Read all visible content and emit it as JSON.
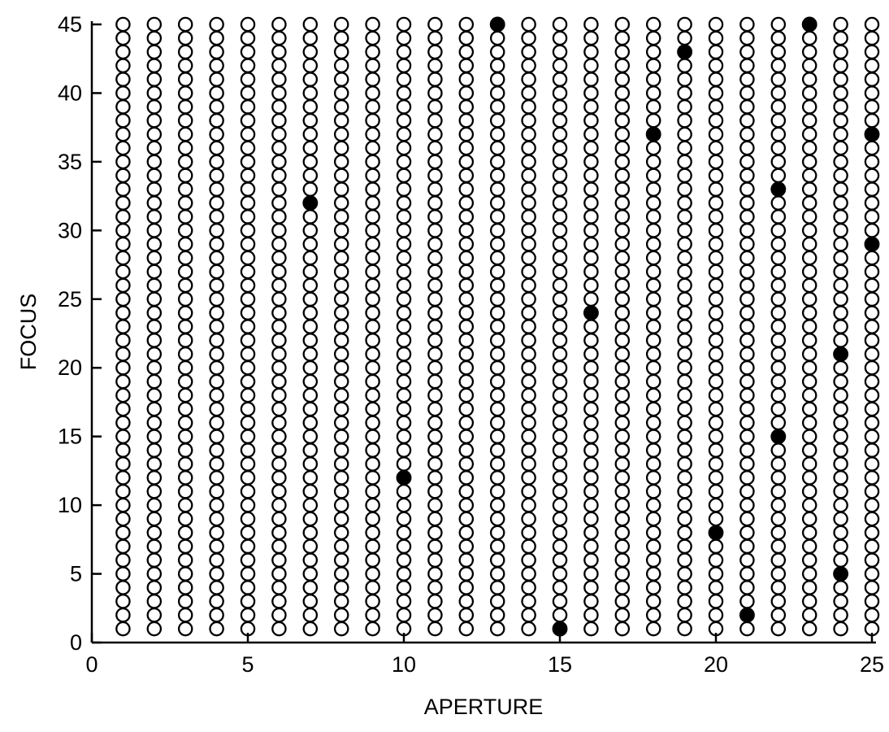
{
  "chart_data": {
    "type": "scatter",
    "title": "",
    "xlabel": "APERTURE",
    "ylabel": "FOCUS",
    "xlim": [
      0,
      25
    ],
    "ylim": [
      0,
      45
    ],
    "x_ticks": [
      {
        "value": 0,
        "label": "0"
      },
      {
        "value": 5,
        "label": "5"
      },
      {
        "value": 10,
        "label": "10"
      },
      {
        "value": 15,
        "label": "15"
      },
      {
        "value": 20,
        "label": "20"
      },
      {
        "value": 25,
        "label": "25"
      }
    ],
    "y_ticks": [
      {
        "value": 0,
        "label": "0"
      },
      {
        "value": 5,
        "label": "5"
      },
      {
        "value": 10,
        "label": "10"
      },
      {
        "value": 15,
        "label": "15"
      },
      {
        "value": 20,
        "label": "20"
      },
      {
        "value": 25,
        "label": "25"
      },
      {
        "value": 30,
        "label": "30"
      },
      {
        "value": 35,
        "label": "35"
      },
      {
        "value": 40,
        "label": "40"
      },
      {
        "value": 45,
        "label": "45"
      }
    ],
    "grid": false,
    "legend": "none",
    "series": [
      {
        "marker": "open-circle",
        "color": "#000000",
        "grid_x": [
          1,
          25,
          1
        ],
        "grid_y": [
          1,
          45,
          1
        ]
      },
      {
        "marker": "filled-circle",
        "color": "#000000",
        "points": [
          {
            "x": 7,
            "y": 32
          },
          {
            "x": 10,
            "y": 12
          },
          {
            "x": 13,
            "y": 45
          },
          {
            "x": 15,
            "y": 1
          },
          {
            "x": 16,
            "y": 24
          },
          {
            "x": 18,
            "y": 37
          },
          {
            "x": 19,
            "y": 43
          },
          {
            "x": 20,
            "y": 8
          },
          {
            "x": 21,
            "y": 2
          },
          {
            "x": 22,
            "y": 15
          },
          {
            "x": 22,
            "y": 33
          },
          {
            "x": 23,
            "y": 45
          },
          {
            "x": 24,
            "y": 5
          },
          {
            "x": 24,
            "y": 21
          },
          {
            "x": 25,
            "y": 29
          },
          {
            "x": 25,
            "y": 37
          }
        ]
      }
    ]
  }
}
